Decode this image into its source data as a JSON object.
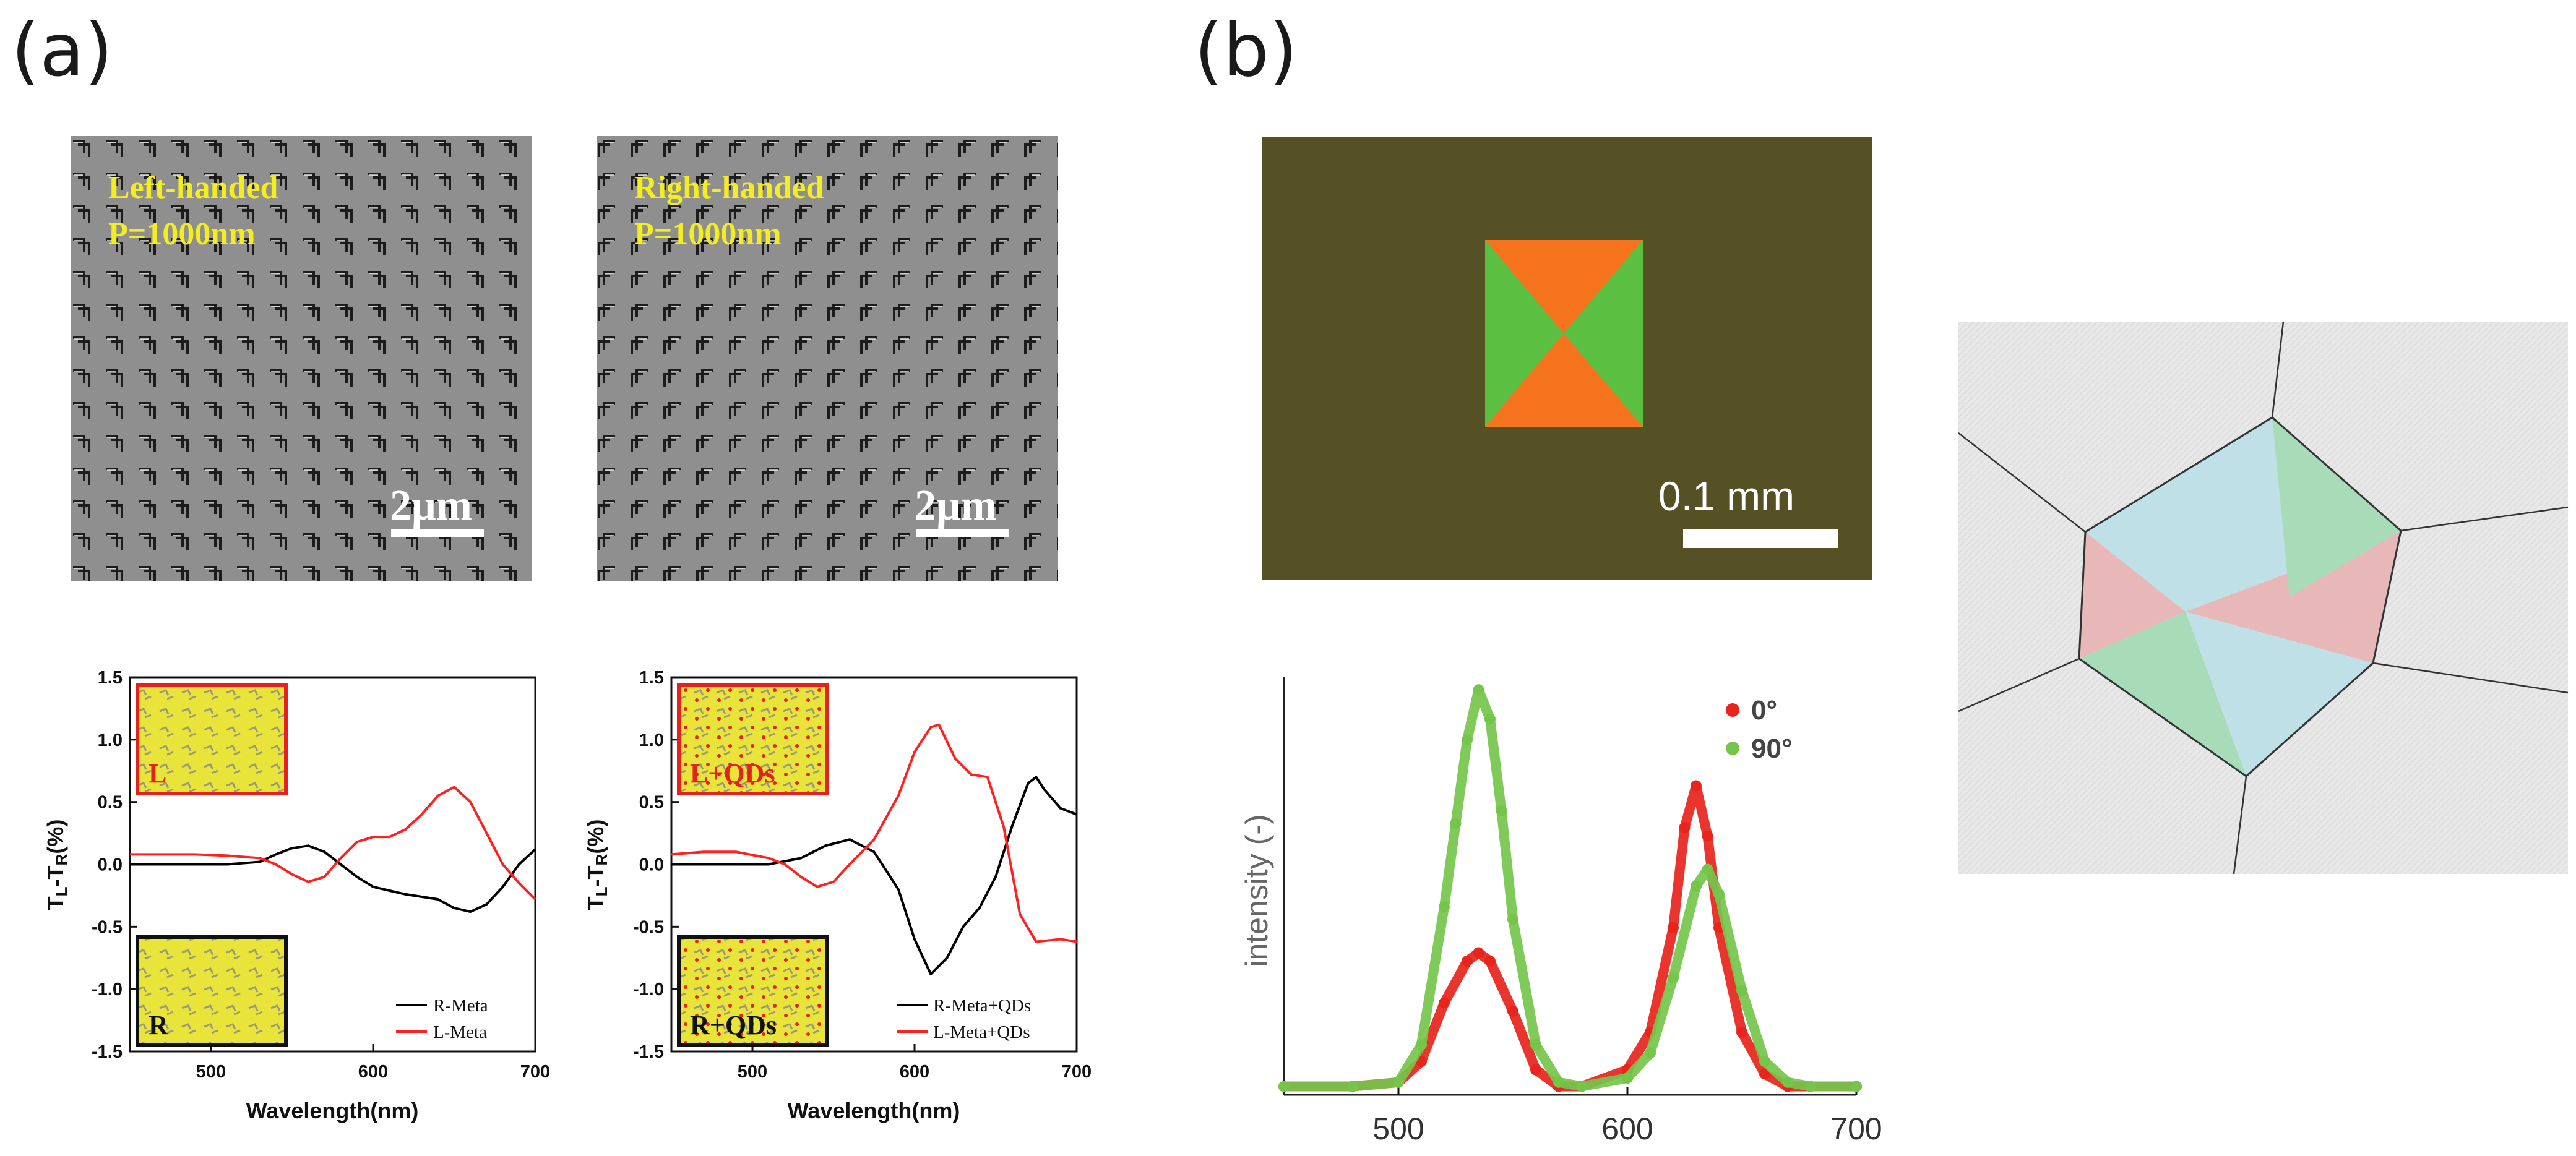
{
  "panels": {
    "a": "(a)",
    "b": "(b)"
  },
  "sem_images": [
    {
      "handedness": "Left-handed",
      "period": "P=1000nm",
      "scale": "2μm"
    },
    {
      "handedness": "Right-handed",
      "period": "P=1000nm",
      "scale": "2μm"
    }
  ],
  "optical_image": {
    "scale": "0.1 mm"
  },
  "chart_data": [
    {
      "type": "line",
      "title": "",
      "xlabel": "Wavelength(nm)",
      "ylabel": "TL-TR(%)",
      "ylabel_main": "T",
      "ylabel_sub1": "L",
      "ylabel_mid": "-T",
      "ylabel_sub2": "R",
      "ylabel_tail": "(%)",
      "xlim": [
        450,
        700
      ],
      "ylim": [
        -1.5,
        1.5
      ],
      "xticks": [
        "500",
        "600",
        "700"
      ],
      "yticks": [
        "1.5",
        "1.0",
        "0.5",
        "0.0",
        "-0.5",
        "-1.0",
        "-1.5"
      ],
      "inset_labels": [
        "L",
        "R"
      ],
      "series": [
        {
          "name": "R-Meta",
          "color": "#000000",
          "x": [
            450,
            470,
            490,
            510,
            530,
            540,
            550,
            560,
            570,
            580,
            590,
            600,
            620,
            640,
            650,
            660,
            670,
            680,
            690,
            700
          ],
          "y": [
            0.0,
            0.0,
            0.0,
            0.0,
            0.02,
            0.08,
            0.13,
            0.15,
            0.1,
            0.0,
            -0.1,
            -0.18,
            -0.24,
            -0.28,
            -0.35,
            -0.38,
            -0.32,
            -0.18,
            0.0,
            0.12
          ]
        },
        {
          "name": "L-Meta",
          "color": "#ff2020",
          "x": [
            450,
            470,
            490,
            510,
            530,
            540,
            550,
            560,
            570,
            580,
            590,
            600,
            610,
            620,
            630,
            640,
            650,
            660,
            670,
            680,
            690,
            700
          ],
          "y": [
            0.08,
            0.08,
            0.08,
            0.07,
            0.05,
            0.0,
            -0.08,
            -0.14,
            -0.1,
            0.05,
            0.18,
            0.22,
            0.22,
            0.28,
            0.4,
            0.55,
            0.62,
            0.5,
            0.25,
            0.0,
            -0.15,
            -0.28
          ]
        }
      ]
    },
    {
      "type": "line",
      "title": "",
      "xlabel": "Wavelength(nm)",
      "ylabel": "TL-TR(%)",
      "ylabel_main": "T",
      "ylabel_sub1": "L",
      "ylabel_mid": "-T",
      "ylabel_sub2": "R",
      "ylabel_tail": "(%)",
      "xlim": [
        450,
        700
      ],
      "ylim": [
        -1.5,
        1.5
      ],
      "xticks": [
        "500",
        "600",
        "700"
      ],
      "yticks": [
        "1.5",
        "1.0",
        "0.5",
        "0.0",
        "-0.5",
        "-1.0",
        "-1.5"
      ],
      "inset_labels": [
        "L+QDs",
        "R+QDs"
      ],
      "series": [
        {
          "name": "R-Meta+QDs",
          "color": "#000000",
          "x": [
            450,
            470,
            490,
            510,
            530,
            545,
            560,
            575,
            590,
            600,
            610,
            620,
            630,
            640,
            650,
            660,
            670,
            675,
            680,
            690,
            700
          ],
          "y": [
            0.0,
            0.0,
            0.0,
            0.0,
            0.05,
            0.15,
            0.2,
            0.1,
            -0.2,
            -0.6,
            -0.88,
            -0.75,
            -0.5,
            -0.35,
            -0.1,
            0.3,
            0.65,
            0.7,
            0.6,
            0.45,
            0.4
          ]
        },
        {
          "name": "L-Meta+QDs",
          "color": "#ff2020",
          "x": [
            450,
            470,
            490,
            510,
            520,
            530,
            540,
            550,
            560,
            575,
            590,
            600,
            610,
            615,
            625,
            635,
            645,
            655,
            665,
            675,
            690,
            700
          ],
          "y": [
            0.08,
            0.1,
            0.1,
            0.05,
            0.0,
            -0.1,
            -0.18,
            -0.14,
            0.0,
            0.2,
            0.55,
            0.9,
            1.1,
            1.12,
            0.85,
            0.72,
            0.7,
            0.3,
            -0.4,
            -0.62,
            -0.6,
            -0.62
          ]
        }
      ]
    },
    {
      "type": "scatter",
      "title": "",
      "xlabel": "",
      "ylabel": "intensity (-)",
      "xlim": [
        450,
        700
      ],
      "ylim": [
        0,
        1.0
      ],
      "xticks": [
        "500",
        "600",
        "700"
      ],
      "series": [
        {
          "name": "0°",
          "color": "#e8241c",
          "x": [
            450,
            480,
            500,
            510,
            520,
            530,
            535,
            540,
            550,
            560,
            570,
            580,
            600,
            610,
            620,
            625,
            630,
            635,
            640,
            650,
            660,
            670,
            680,
            700
          ],
          "y": [
            0.02,
            0.02,
            0.03,
            0.08,
            0.22,
            0.32,
            0.34,
            0.32,
            0.2,
            0.06,
            0.02,
            0.02,
            0.06,
            0.15,
            0.4,
            0.64,
            0.74,
            0.62,
            0.4,
            0.15,
            0.05,
            0.02,
            0.02,
            0.02
          ]
        },
        {
          "name": "90°",
          "color": "#74c54a",
          "x": [
            450,
            480,
            500,
            510,
            520,
            525,
            530,
            535,
            540,
            545,
            550,
            560,
            570,
            580,
            600,
            610,
            620,
            630,
            635,
            640,
            650,
            660,
            670,
            680,
            700
          ],
          "y": [
            0.02,
            0.02,
            0.03,
            0.12,
            0.45,
            0.65,
            0.85,
            0.97,
            0.9,
            0.68,
            0.42,
            0.12,
            0.03,
            0.02,
            0.04,
            0.1,
            0.28,
            0.5,
            0.54,
            0.48,
            0.25,
            0.08,
            0.03,
            0.02,
            0.02
          ]
        }
      ]
    }
  ]
}
